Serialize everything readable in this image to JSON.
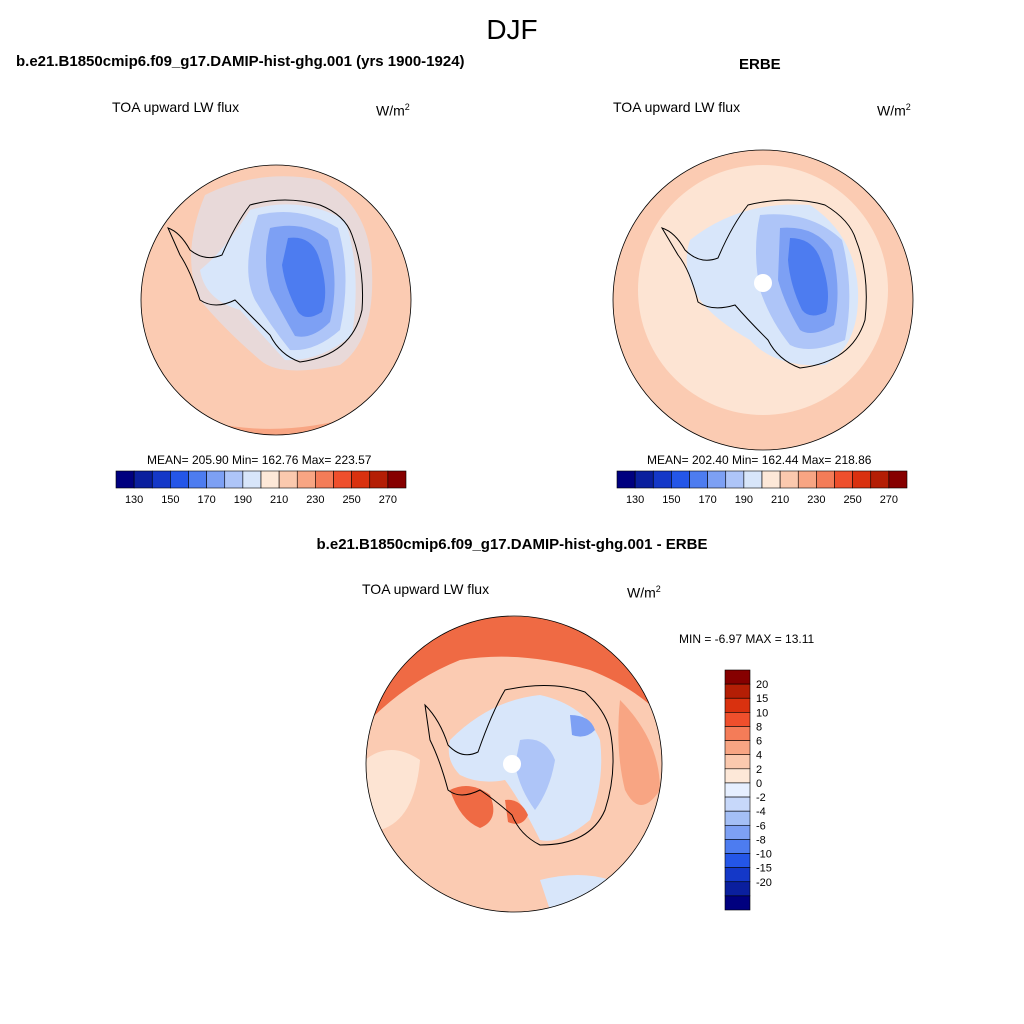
{
  "figure": {
    "season": "DJF"
  },
  "panels": [
    {
      "id": "model",
      "title": "b.e21.B1850cmip6.f09_g17.DAMIP-hist-ghg.001 (yrs 1900-1924)",
      "variable": "TOA upward LW flux",
      "units_base": "W/m",
      "units_exp": "2",
      "stats": "MEAN= 205.90  Min= 162.76  Max= 223.57"
    },
    {
      "id": "obs",
      "title": "ERBE",
      "variable": "TOA upward LW flux",
      "units_base": "W/m",
      "units_exp": "2",
      "stats": "MEAN= 202.40  Min= 162.44  Max= 218.86"
    },
    {
      "id": "diff",
      "title": "b.e21.B1850cmip6.f09_g17.DAMIP-hist-ghg.001 - ERBE",
      "variable": "TOA upward LW flux",
      "units_base": "W/m",
      "units_exp": "2",
      "stats": "MIN =  -6.97 MAX =  13.11"
    }
  ],
  "colorbars": {
    "field": {
      "colors": [
        "#00007f",
        "#0a1f9e",
        "#1438c8",
        "#2456e8",
        "#4d7cf0",
        "#7da0f4",
        "#aec5f8",
        "#d8e6fa",
        "#fde8d8",
        "#fbc9ae",
        "#f8a583",
        "#f47c58",
        "#ef4f2c",
        "#d9310f",
        "#b41e05",
        "#860000"
      ],
      "tick_labels": [
        "130",
        "150",
        "170",
        "190",
        "210",
        "230",
        "250",
        "270"
      ]
    },
    "diff": {
      "colors": [
        "#860000",
        "#b41e05",
        "#d9310f",
        "#ef4f2c",
        "#f47c58",
        "#f8a583",
        "#fbc9ae",
        "#fde8d8",
        "#e6efff",
        "#c7d8fa",
        "#a4bff6",
        "#7da0f4",
        "#4d7cf0",
        "#2456e8",
        "#1438c8",
        "#0a1f9e",
        "#00007f"
      ],
      "tick_labels": [
        "20",
        "15",
        "10",
        "8",
        "6",
        "4",
        "2",
        "0",
        "-2",
        "-4",
        "-6",
        "-8",
        "-10",
        "-15",
        "-20"
      ]
    }
  },
  "map_colors": {
    "ocean_model": "#fbcbb2",
    "ocean_obs": "#fde4d3",
    "ocean_obs_outer": "#fbcbb2",
    "ocean_diff": "#fbcbb2",
    "ice_light": "#d8e6fa",
    "ice_mid": "#aec5f8",
    "ice_dark": "#7da0f4",
    "ice_core": "#4d7cf0",
    "warm_strong": "#ef6a44",
    "warm_mid": "#f8a583",
    "missing": "#ffffff",
    "coast": "#000000"
  }
}
